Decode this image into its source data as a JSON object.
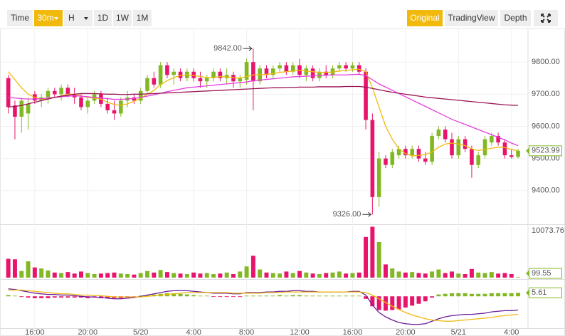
{
  "toolbar": {
    "left": [
      "Time",
      "30m",
      "H",
      "1D",
      "1W",
      "1M"
    ],
    "right": [
      "Original",
      "TradingView",
      "Depth"
    ]
  },
  "chart_data": [
    {
      "type": "candlestick",
      "up_color": "#82b823",
      "down_color": "#e8146c",
      "ylim": [
        9300,
        9900
      ],
      "yticks": [
        {
          "value": 9800,
          "label": "9800.00"
        },
        {
          "value": 9700,
          "label": "9700.00"
        },
        {
          "value": 9600,
          "label": "9600.00"
        },
        {
          "value": 9500,
          "label": "9500.00"
        },
        {
          "value": 9400,
          "label": "9400.00"
        }
      ],
      "grid": true,
      "open": [
        9750,
        9665,
        9630,
        9640,
        9700,
        9680,
        9690,
        9710,
        9700,
        9720,
        9700,
        9690,
        9660,
        9680,
        9700,
        9670,
        9650,
        9640,
        9680,
        9690,
        9680,
        9710,
        9750,
        9730,
        9790,
        9760,
        9770,
        9750,
        9770,
        9750,
        9740,
        9750,
        9770,
        9750,
        9760,
        9740,
        9745,
        9800,
        9740,
        9780,
        9760,
        9780,
        9790,
        9770,
        9790,
        9760,
        9780,
        9750,
        9770,
        9760,
        9780,
        9790,
        9780,
        9790,
        9770,
        9620,
        9380,
        9500,
        9480,
        9510,
        9530,
        9510,
        9530,
        9500,
        9490,
        9570,
        9590,
        9560,
        9510,
        9560,
        9530,
        9480,
        9510,
        9550,
        9570,
        9550,
        9510,
        9505
      ],
      "high": [
        9760,
        9680,
        9690,
        9690,
        9710,
        9700,
        9720,
        9720,
        9730,
        9730,
        9720,
        9700,
        9690,
        9710,
        9710,
        9690,
        9680,
        9690,
        9710,
        9700,
        9720,
        9760,
        9770,
        9800,
        9800,
        9780,
        9780,
        9780,
        9780,
        9770,
        9760,
        9780,
        9780,
        9780,
        9770,
        9760,
        9810,
        9842,
        9790,
        9790,
        9790,
        9800,
        9800,
        9800,
        9810,
        9790,
        9790,
        9780,
        9790,
        9790,
        9800,
        9800,
        9800,
        9800,
        9780,
        9640,
        9520,
        9510,
        9530,
        9540,
        9540,
        9540,
        9540,
        9520,
        9580,
        9600,
        9600,
        9580,
        9570,
        9570,
        9540,
        9520,
        9570,
        9580,
        9580,
        9560,
        9530,
        9530
      ],
      "low": [
        9640,
        9560,
        9580,
        9590,
        9670,
        9660,
        9670,
        9690,
        9680,
        9690,
        9670,
        9650,
        9640,
        9670,
        9660,
        9640,
        9620,
        9630,
        9660,
        9670,
        9670,
        9700,
        9720,
        9720,
        9750,
        9730,
        9740,
        9740,
        9740,
        9720,
        9720,
        9740,
        9740,
        9730,
        9720,
        9720,
        9730,
        9650,
        9730,
        9750,
        9750,
        9770,
        9760,
        9760,
        9750,
        9740,
        9740,
        9740,
        9750,
        9750,
        9770,
        9770,
        9770,
        9760,
        9590,
        9326,
        9350,
        9470,
        9470,
        9500,
        9500,
        9500,
        9490,
        9480,
        9480,
        9560,
        9550,
        9500,
        9500,
        9520,
        9440,
        9470,
        9500,
        9540,
        9540,
        9500,
        9500,
        9500
      ],
      "close": [
        9660,
        9630,
        9680,
        9670,
        9680,
        9690,
        9710,
        9700,
        9720,
        9700,
        9690,
        9660,
        9680,
        9700,
        9670,
        9650,
        9640,
        9680,
        9690,
        9680,
        9710,
        9750,
        9730,
        9790,
        9760,
        9770,
        9750,
        9770,
        9750,
        9740,
        9750,
        9770,
        9750,
        9760,
        9740,
        9750,
        9800,
        9740,
        9780,
        9760,
        9780,
        9790,
        9770,
        9790,
        9760,
        9780,
        9750,
        9770,
        9760,
        9780,
        9790,
        9780,
        9790,
        9770,
        9620,
        9380,
        9500,
        9480,
        9520,
        9530,
        9510,
        9530,
        9500,
        9490,
        9570,
        9590,
        9560,
        9510,
        9560,
        9530,
        9480,
        9510,
        9560,
        9570,
        9550,
        9510,
        9505,
        9523.99
      ],
      "lines": [
        {
          "color": "#f0b90b",
          "values": [
            9770,
            9745,
            9720,
            9700,
            9690,
            9685,
            9685,
            9690,
            9695,
            9700,
            9700,
            9695,
            9690,
            9688,
            9685,
            9675,
            9668,
            9665,
            9670,
            9678,
            9688,
            9700,
            9712,
            9730,
            9742,
            9752,
            9758,
            9760,
            9758,
            9755,
            9752,
            9752,
            9755,
            9754,
            9752,
            9750,
            9755,
            9760,
            9760,
            9762,
            9764,
            9768,
            9770,
            9772,
            9774,
            9772,
            9770,
            9768,
            9768,
            9769,
            9772,
            9774,
            9776,
            9778,
            9770,
            9720,
            9660,
            9600,
            9560,
            9530,
            9515,
            9508,
            9510,
            9512,
            9520,
            9535,
            9545,
            9548,
            9545,
            9540,
            9530,
            9525,
            9528,
            9532,
            9535,
            9534,
            9528,
            9524
          ]
        },
        {
          "color": "#e83de0",
          "values": [
            9690,
            9688,
            9686,
            9685,
            9685,
            9686,
            9688,
            9690,
            9692,
            9694,
            9695,
            9694,
            9692,
            9690,
            9688,
            9686,
            9684,
            9684,
            9685,
            9687,
            9690,
            9694,
            9698,
            9703,
            9708,
            9712,
            9716,
            9720,
            9722,
            9724,
            9726,
            9728,
            9730,
            9732,
            9734,
            9736,
            9738,
            9742,
            9744,
            9746,
            9748,
            9750,
            9752,
            9754,
            9755,
            9756,
            9757,
            9758,
            9759,
            9760,
            9760,
            9760,
            9761,
            9762,
            9758,
            9745,
            9732,
            9722,
            9712,
            9702,
            9692,
            9682,
            9672,
            9662,
            9652,
            9642,
            9632,
            9622,
            9614,
            9606,
            9598,
            9590,
            9582,
            9574,
            9566,
            9558,
            9548,
            9540
          ]
        },
        {
          "color": "#9a1455",
          "values": [
            9660,
            9662,
            9665,
            9670,
            9675,
            9680,
            9685,
            9690,
            9694,
            9697,
            9700,
            9702,
            9702,
            9702,
            9701,
            9700,
            9700,
            9699,
            9699,
            9700,
            9700,
            9701,
            9702,
            9703,
            9704,
            9705,
            9706,
            9707,
            9708,
            9709,
            9710,
            9711,
            9712,
            9713,
            9714,
            9715,
            9716,
            9717,
            9718,
            9719,
            9720,
            9720,
            9721,
            9721,
            9722,
            9722,
            9722,
            9723,
            9723,
            9723,
            9723,
            9724,
            9724,
            9724,
            9722,
            9718,
            9714,
            9710,
            9706,
            9703,
            9700,
            9697,
            9694,
            9691,
            9689,
            9687,
            9685,
            9683,
            9681,
            9679,
            9677,
            9675,
            9673,
            9671,
            9669,
            9667,
            9666,
            9665
          ]
        }
      ],
      "high_label": "9842.00",
      "low_label": "9326.00",
      "last_label": "9523.99"
    },
    {
      "type": "bar",
      "up_color": "#82b823",
      "down_color": "#e8146c",
      "ylim": [
        0,
        10073.76
      ],
      "yticks": [
        10073.76
      ],
      "values": [
        3700,
        3600,
        1300,
        3200,
        2000,
        1800,
        1400,
        1000,
        900,
        1100,
        800,
        1200,
        900,
        700,
        800,
        900,
        1000,
        800,
        700,
        600,
        900,
        1300,
        1000,
        1500,
        1100,
        900,
        800,
        700,
        1000,
        800,
        900,
        700,
        800,
        1000,
        700,
        1200,
        2200,
        4300,
        1600,
        1000,
        900,
        800,
        1200,
        900,
        1300,
        1000,
        800,
        700,
        900,
        1000,
        1200,
        800,
        900,
        1000,
        8000,
        10000,
        7000,
        2600,
        1800,
        1200,
        1000,
        1100,
        900,
        800,
        1200,
        1600,
        900,
        1200,
        800,
        700,
        1700,
        1000,
        900,
        1100,
        800,
        900,
        700,
        99.55
      ],
      "last_label": "99.55"
    },
    {
      "type": "bar",
      "positive_color": "#82b823",
      "negative_color": "#e8146c",
      "ylim": [
        -50,
        22
      ],
      "xlim": [
        -0.5,
        78.5
      ],
      "xticks": [
        {
          "value": 4,
          "label": "16:00"
        },
        {
          "value": 12,
          "label": "20:00"
        },
        {
          "value": 20,
          "label": "5/20"
        },
        {
          "value": 28,
          "label": "4:00"
        },
        {
          "value": 36,
          "label": "8:00"
        },
        {
          "value": 44,
          "label": "12:00"
        },
        {
          "value": 52,
          "label": "16:00"
        },
        {
          "value": 60,
          "label": "20:00"
        },
        {
          "value": 68,
          "label": "5/21"
        },
        {
          "value": 76,
          "label": "4:00"
        }
      ],
      "values": [
        2,
        1,
        -1,
        -2,
        -3,
        -3,
        -3,
        -2,
        -2,
        -2,
        -2,
        -2,
        -3,
        -2,
        -3,
        -3,
        -3,
        -3,
        -2,
        -1,
        1,
        2,
        3,
        4,
        5,
        5,
        4,
        3,
        2,
        1,
        1,
        -1,
        -1,
        -1,
        -1,
        -1,
        1,
        1,
        1,
        1,
        1,
        2,
        1,
        2,
        2,
        1,
        1,
        1,
        1,
        1,
        1,
        1,
        1,
        1,
        -4,
        -16,
        -22,
        -23,
        -22,
        -21,
        -18,
        -15,
        -12,
        -8,
        -2,
        3,
        4,
        5,
        5,
        5,
        4,
        4,
        4,
        5,
        5,
        5,
        5,
        5.61
      ],
      "lines": [
        {
          "color": "#6a1b9a",
          "values": [
            12,
            11,
            9,
            7,
            5,
            4,
            3,
            3,
            2,
            2,
            1,
            0,
            -1,
            -1,
            -2,
            -3,
            -4,
            -4,
            -3,
            -2,
            0,
            2,
            4,
            6,
            8,
            9,
            9,
            9,
            8,
            7,
            6,
            5,
            5,
            5,
            4,
            4,
            6,
            6,
            6,
            7,
            7,
            8,
            8,
            9,
            9,
            8,
            8,
            7,
            7,
            7,
            7,
            7,
            8,
            8,
            2,
            -14,
            -26,
            -33,
            -38,
            -42,
            -44,
            -45,
            -45,
            -44,
            -40,
            -36,
            -33,
            -31,
            -30,
            -29,
            -29,
            -28,
            -27,
            -25,
            -24,
            -23,
            -23,
            -22
          ]
        },
        {
          "color": "#f0b90b",
          "values": [
            10,
            10,
            10,
            9,
            8,
            7,
            6,
            5,
            4,
            4,
            3,
            2,
            2,
            1,
            1,
            0,
            -1,
            -1,
            -1,
            -1,
            -1,
            0,
            1,
            2,
            3,
            4,
            5,
            6,
            6,
            6,
            6,
            6,
            6,
            6,
            5,
            5,
            5,
            5,
            5,
            6,
            6,
            6,
            7,
            7,
            7,
            7,
            7,
            7,
            7,
            7,
            7,
            7,
            7,
            7,
            6,
            2,
            -4,
            -10,
            -16,
            -21,
            -26,
            -30,
            -33,
            -36,
            -38,
            -39,
            -40,
            -40,
            -39,
            -38,
            -37,
            -36,
            -35,
            -34,
            -32,
            -31,
            -30,
            -29
          ]
        }
      ],
      "last_label": "5.61"
    }
  ]
}
